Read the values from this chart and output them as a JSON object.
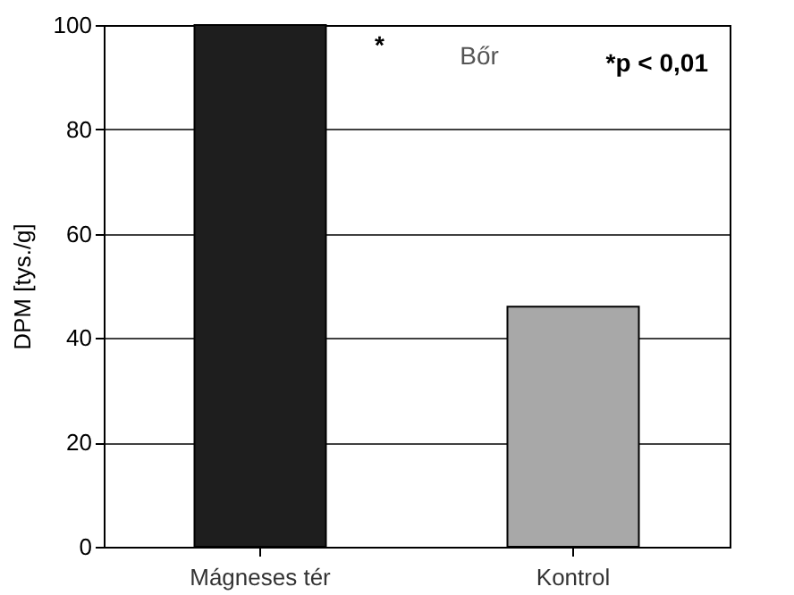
{
  "chart_data": {
    "type": "bar",
    "title": "Bőr",
    "ylabel": "DPM [tys./g]",
    "categories": [
      "Mágneses tér",
      "Kontrol"
    ],
    "values": [
      100,
      46
    ],
    "colors": [
      "#1e1e1e",
      "#a8a8a8"
    ],
    "ylim": [
      0,
      100
    ],
    "yticks": [
      0,
      20,
      40,
      60,
      80,
      100
    ],
    "grid": "y",
    "annotations": [
      "*",
      "*p < 0,01"
    ]
  }
}
